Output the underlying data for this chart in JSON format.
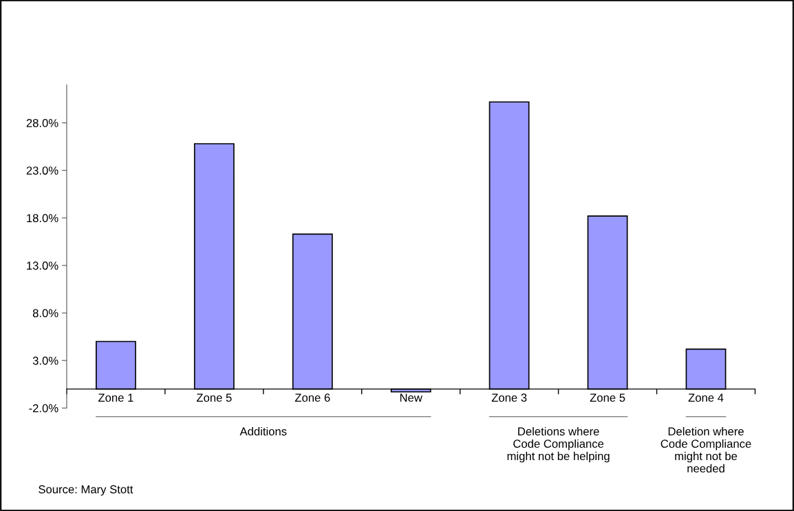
{
  "chart_data": {
    "type": "bar",
    "categories": [
      "Zone 1",
      "Zone 5",
      "Zone 6",
      "New",
      "Zone 3",
      "Zone 5",
      "Zone 4"
    ],
    "values": [
      5.0,
      25.8,
      16.3,
      -0.3,
      30.2,
      18.2,
      4.2
    ],
    "color": "#9999ff",
    "ylim": [
      -2,
      32
    ],
    "yticks": [
      {
        "value": -2,
        "label": "-2.0%"
      },
      {
        "value": 3,
        "label": "3.0%"
      },
      {
        "value": 8,
        "label": "8.0%"
      },
      {
        "value": 13,
        "label": "13.0%"
      },
      {
        "value": 18,
        "label": "18.0%"
      },
      {
        "value": 23,
        "label": "23.0%"
      },
      {
        "value": 28,
        "label": "28.0%"
      }
    ],
    "grid": false,
    "annotations": [
      "Additions",
      "Deletions where\nCode Compliance\nmight not be helping",
      "Deletion where\nCode Compliance\nmight not be\nneeded",
      "Source: Mary Stott"
    ]
  }
}
